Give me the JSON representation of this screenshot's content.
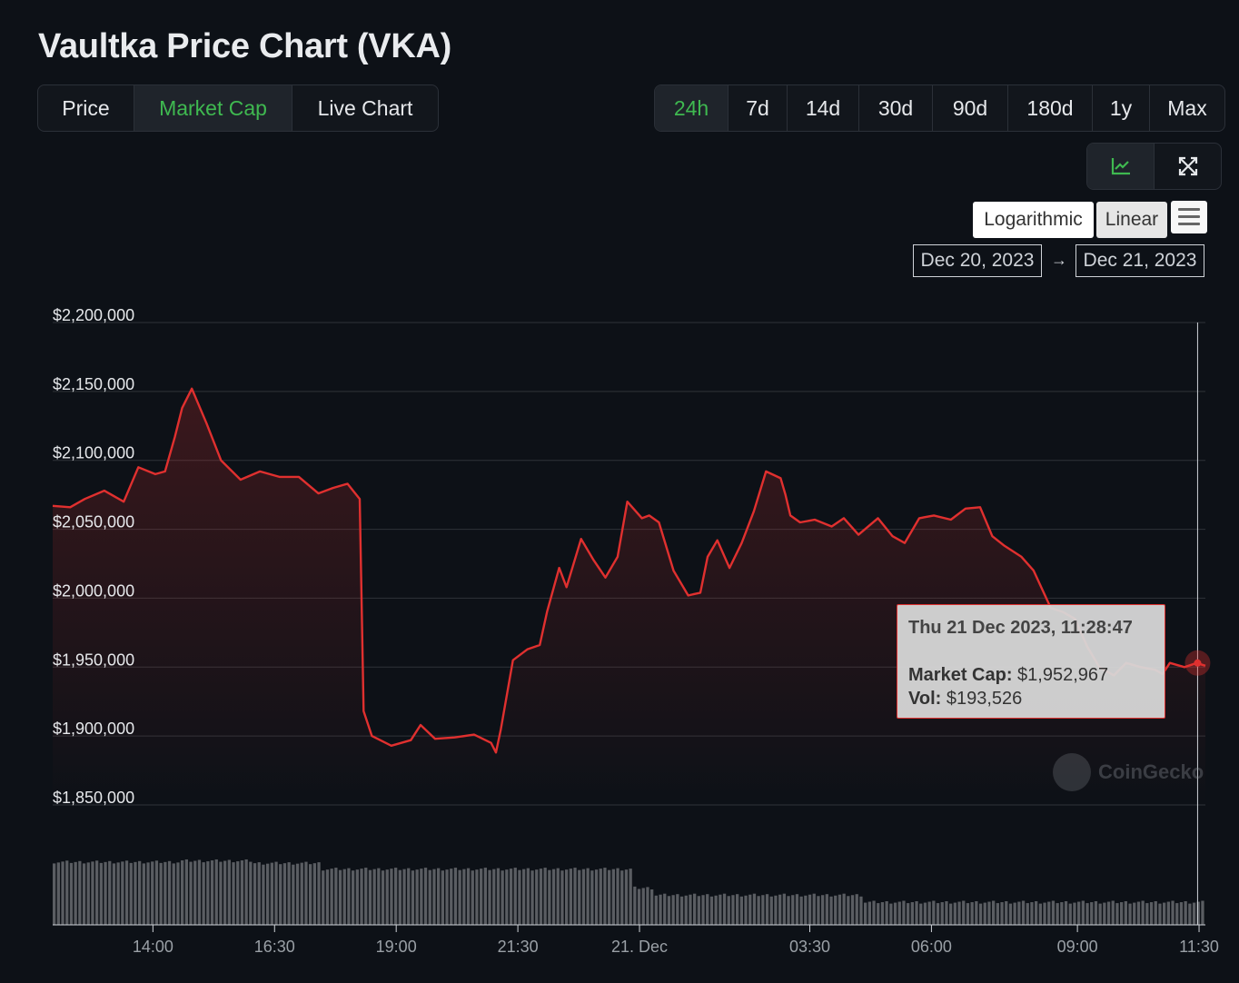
{
  "title": "Vaultka Price Chart (VKA)",
  "view_tabs": [
    {
      "label": "Price",
      "active": false
    },
    {
      "label": "Market Cap",
      "active": true
    },
    {
      "label": "Live Chart",
      "active": false
    }
  ],
  "range_tabs": [
    {
      "label": "24h",
      "active": true
    },
    {
      "label": "7d",
      "active": false
    },
    {
      "label": "14d",
      "active": false
    },
    {
      "label": "30d",
      "active": false
    },
    {
      "label": "90d",
      "active": false
    },
    {
      "label": "180d",
      "active": false
    },
    {
      "label": "1y",
      "active": false
    },
    {
      "label": "Max",
      "active": false
    }
  ],
  "tools": [
    {
      "icon": "line-chart-icon",
      "active": true
    },
    {
      "icon": "expand-icon",
      "active": false
    }
  ],
  "scale": {
    "log_label": "Logarithmic",
    "linear_label": "Linear",
    "selected": "Linear"
  },
  "date_range": {
    "from": "Dec 20, 2023",
    "arrow": "→",
    "to": "Dec 21, 2023"
  },
  "tooltip": {
    "title": "Thu 21 Dec 2023, 11:28:47",
    "cap_label": "Market Cap:",
    "cap_value": "$1,952,967",
    "vol_label": "Vol:",
    "vol_value": "$193,526"
  },
  "watermark": "CoinGecko",
  "colors": {
    "line": "#e0302f",
    "accent": "#3fb950",
    "grid": "#2f3339",
    "volume": "#5a5d62",
    "background": "#0d1117"
  },
  "chart_data": {
    "type": "line",
    "title": "",
    "xlabel": "",
    "ylabel": "",
    "y_ticks": [
      "$2,200,000",
      "$2,150,000",
      "$2,100,000",
      "$2,050,000",
      "$2,000,000",
      "$1,950,000",
      "$1,900,000",
      "$1,850,000"
    ],
    "y_tick_values": [
      2200000,
      2150000,
      2100000,
      2050000,
      2000000,
      1950000,
      1900000,
      1850000
    ],
    "ylim": [
      1850000,
      2200000
    ],
    "x_ticks": [
      "14:00",
      "16:30",
      "19:00",
      "21:30",
      "21. Dec",
      "03:30",
      "06:00",
      "09:00",
      "11:30"
    ],
    "x_tick_hours": [
      14,
      16.5,
      19,
      21.5,
      24,
      27.5,
      30,
      33,
      35.5
    ],
    "xlim_hours": [
      11.94,
      35.63
    ],
    "grid": true,
    "legend": "none",
    "series": [
      {
        "values_hours": [
          11.94,
          12.3,
          12.6,
          13.0,
          13.4,
          13.7,
          14.05,
          14.25,
          14.45,
          14.6,
          14.8,
          15.1,
          15.4,
          15.8,
          16.2,
          16.6,
          17.0,
          17.4,
          17.7,
          18.0,
          18.25,
          18.33,
          18.5,
          18.9,
          19.3,
          19.5,
          19.8,
          20.2,
          20.6,
          20.95,
          21.05,
          21.15,
          21.4,
          21.7,
          21.95,
          22.1,
          22.35,
          22.5,
          22.8,
          23.05,
          23.3,
          23.55,
          23.75,
          24.05,
          24.2,
          24.4,
          24.7,
          25.0,
          25.25,
          25.4,
          25.6,
          25.85,
          26.1,
          26.35,
          26.6,
          26.9,
          27.0,
          27.1,
          27.3,
          27.6,
          27.95,
          28.2,
          28.5,
          28.9,
          29.2,
          29.45,
          29.75,
          30.05,
          30.4,
          30.7,
          31.0,
          31.25,
          31.5,
          31.85,
          32.1,
          32.45,
          32.7,
          32.95,
          33.2,
          33.45,
          33.75,
          34.0,
          34.3,
          34.6,
          34.75,
          34.9,
          35.2,
          35.45,
          35.63
        ],
        "values": [
          2067000,
          2066000,
          2072000,
          2078000,
          2070000,
          2095000,
          2090000,
          2092000,
          2117000,
          2138000,
          2152000,
          2127000,
          2100000,
          2086000,
          2092000,
          2088000,
          2088000,
          2076000,
          2080000,
          2083000,
          2072000,
          1918000,
          1900000,
          1893000,
          1897000,
          1908000,
          1898000,
          1899000,
          1901000,
          1895000,
          1888000,
          1905000,
          1955000,
          1963000,
          1966000,
          1990000,
          2022000,
          2008000,
          2043000,
          2028000,
          2015000,
          2030000,
          2070000,
          2058000,
          2060000,
          2055000,
          2020000,
          2002000,
          2004000,
          2030000,
          2042000,
          2022000,
          2040000,
          2063000,
          2092000,
          2087000,
          2075000,
          2060000,
          2055000,
          2057000,
          2052000,
          2058000,
          2046000,
          2058000,
          2045000,
          2040000,
          2058000,
          2060000,
          2057000,
          2065000,
          2066000,
          2045000,
          2038000,
          2030000,
          2020000,
          1993000,
          1990000,
          1985000,
          1965000,
          1950000,
          1944000,
          1953000,
          1950000,
          1948000,
          1945000,
          1953000,
          1950000,
          1952967,
          1951000
        ],
        "volume": "bars"
      }
    ],
    "cursor_hour": 35.47
  }
}
